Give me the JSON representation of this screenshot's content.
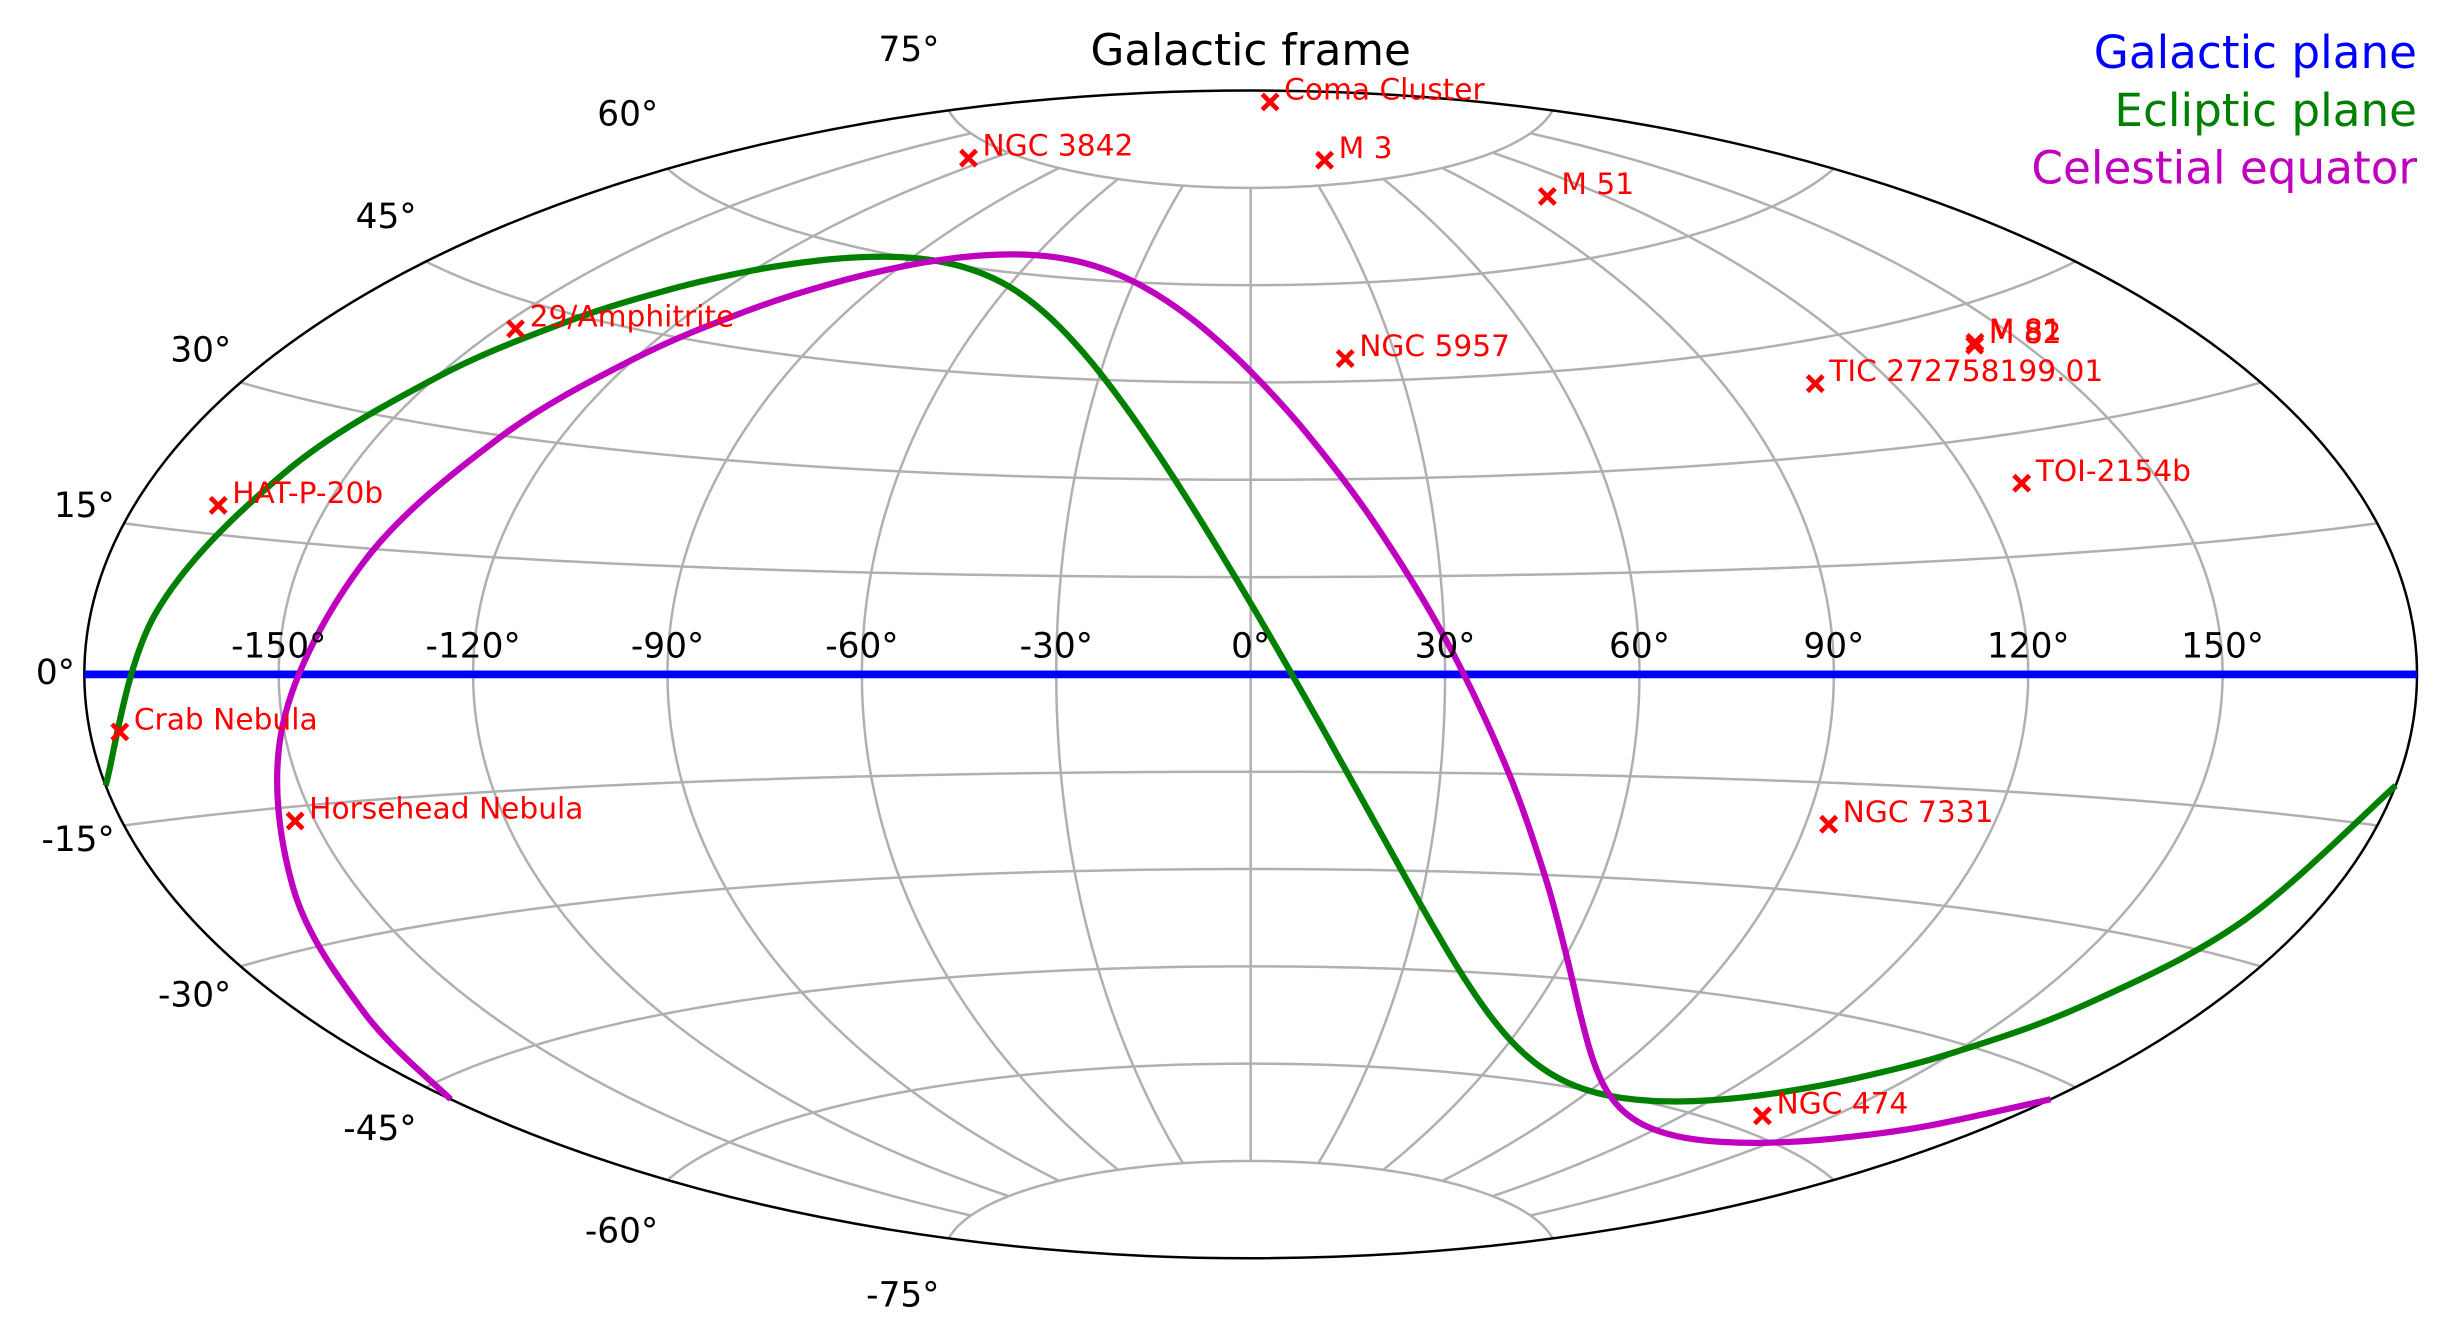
{
  "chart_data": {
    "type": "aitoff",
    "title": "Galactic frame",
    "xlim": [
      -180,
      180
    ],
    "ylim": [
      -90,
      90
    ],
    "grid": true,
    "legend": "upper right",
    "xticks": [
      {
        "value": -150,
        "label": "-150°"
      },
      {
        "value": -120,
        "label": "-120°"
      },
      {
        "value": -90,
        "label": "-90°"
      },
      {
        "value": -60,
        "label": "-60°"
      },
      {
        "value": -30,
        "label": "-30°"
      },
      {
        "value": 0,
        "label": "0°"
      },
      {
        "value": 30,
        "label": "30°"
      },
      {
        "value": 60,
        "label": "60°"
      },
      {
        "value": 90,
        "label": "90°"
      },
      {
        "value": 120,
        "label": "120°"
      },
      {
        "value": 150,
        "label": "150°"
      }
    ],
    "yticks": [
      {
        "value": -75,
        "label": "-75°"
      },
      {
        "value": -60,
        "label": "-60°"
      },
      {
        "value": -45,
        "label": "-45°"
      },
      {
        "value": -30,
        "label": "-30°"
      },
      {
        "value": -15,
        "label": "-15°"
      },
      {
        "value": 0,
        "label": "0°"
      },
      {
        "value": 15,
        "label": "15°"
      },
      {
        "value": 30,
        "label": "30°"
      },
      {
        "value": 45,
        "label": "45°"
      },
      {
        "value": 60,
        "label": "60°"
      },
      {
        "value": 75,
        "label": "75°"
      }
    ],
    "series": [
      {
        "name": "Galactic plane",
        "color": "#0000ff",
        "x": [
          -180,
          180
        ],
        "values": [
          0,
          0
        ]
      },
      {
        "name": "Ecliptic plane",
        "color": "#008000",
        "x": [
          -180,
          -170,
          -160,
          -150,
          -140,
          -130,
          -120,
          -110,
          -100,
          -90,
          -80,
          -70,
          -60,
          -50,
          -40,
          -30,
          -20,
          -10,
          0,
          10,
          20,
          30,
          40,
          50,
          60,
          70,
          80,
          90,
          100,
          110,
          120,
          130,
          140,
          150,
          160,
          170,
          180
        ],
        "values": [
          -10.98,
          6.29,
          22.36,
          34.97,
          44.03,
          50.3,
          54.58,
          57.41,
          59.17,
          60.05,
          60.15,
          59.49,
          58.01,
          55.48,
          51.64,
          46.0,
          37.81,
          26.22,
          10.98,
          -6.29,
          -22.36,
          -34.97,
          -44.03,
          -50.3,
          -54.58,
          -57.41,
          -59.17,
          -60.05,
          -60.15,
          -59.49,
          -58.01,
          -55.48,
          -51.64,
          -46.0,
          -37.81,
          -26.22,
          -10.98
        ]
      },
      {
        "name": "Celestial equator",
        "color": "#bf00bf",
        "x": [
          -180,
          -170,
          -160,
          -150,
          -140,
          -130,
          -120,
          -110,
          -100,
          -90,
          -80,
          -70,
          -60,
          -50,
          -40,
          -30,
          -20,
          -10,
          0,
          10,
          20,
          30,
          40,
          50,
          60,
          70,
          80,
          90,
          100,
          110,
          120,
          130,
          140,
          150,
          160,
          170,
          180
        ],
        "values": [
          -46.69,
          -37.25,
          -23.59,
          -5.69,
          13.51,
          29.8,
          41.61,
          49.63,
          55.01,
          58.6,
          60.91,
          62.27,
          62.84,
          62.69,
          61.8,
          60.08,
          57.29,
          53.05,
          46.69,
          37.25,
          23.59,
          5.69,
          -13.51,
          -29.8,
          -41.61,
          -49.63,
          -55.01,
          -58.6,
          -60.91,
          -62.27,
          -62.84,
          -62.69,
          -61.8,
          -60.08,
          -57.29,
          -53.05,
          -46.69
        ]
      }
    ],
    "points": {
      "color": "#ff0000",
      "marker": "x",
      "labels": [
        "Coma Cluster",
        "NGC 3842",
        "M 3",
        "M 51",
        "M 81",
        "M 82",
        "29/Amphitrite",
        "NGC 5957",
        "TIC 272758199.01",
        "TOI-2154b",
        "HAT-P-20b",
        "Crab Nebula",
        "Horsehead Nebula",
        "NGC 7331",
        "NGC 474"
      ],
      "x": [
        58.1,
        -127.0,
        42.2,
        104.9,
        142.1,
        141.4,
        -147,
        19.5,
        106.5,
        128,
        -167,
        -175.4,
        -153.1,
        93.7,
        136.5
      ],
      "y": [
        88.0,
        73.0,
        78.7,
        68.6,
        40.9,
        40.6,
        42,
        48.5,
        39.5,
        24,
        18,
        -5.8,
        -16.6,
        -20.7,
        -58
      ]
    }
  }
}
